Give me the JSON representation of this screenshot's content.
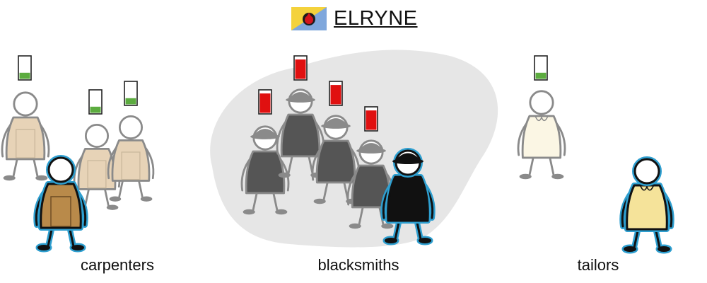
{
  "header": {
    "title": "ELRYNE",
    "flag_colors": {
      "yellow": "#f4d23c",
      "blue": "#7fa7dc",
      "red": "#d4141c"
    }
  },
  "groups": [
    {
      "id": "carpenters",
      "label": "carpenters",
      "clothing_color": "#b98a4a",
      "faded_clothing_color": "#e7d3b7",
      "selected": true
    },
    {
      "id": "blacksmiths",
      "label": "blacksmiths",
      "clothing_color": "#111111",
      "faded_clothing_color": "#555555",
      "selected": true,
      "highlighted_area": true
    },
    {
      "id": "tailors",
      "label": "tailors",
      "clothing_color": "#f5e39a",
      "faded_clothing_color": "#fbf6e4",
      "selected": true
    }
  ],
  "colors": {
    "outline": "#111111",
    "selection": "#2e9fd0",
    "meter_good": "#5cac3f",
    "meter_bad": "#e01010",
    "highlight_blob": "#e6e6e6"
  },
  "meters": {
    "carpenters": [
      0.3,
      0.3,
      0.3
    ],
    "blacksmiths": [
      0.85,
      0.85,
      0.85,
      0.85
    ],
    "tailors": [
      0.3
    ]
  }
}
